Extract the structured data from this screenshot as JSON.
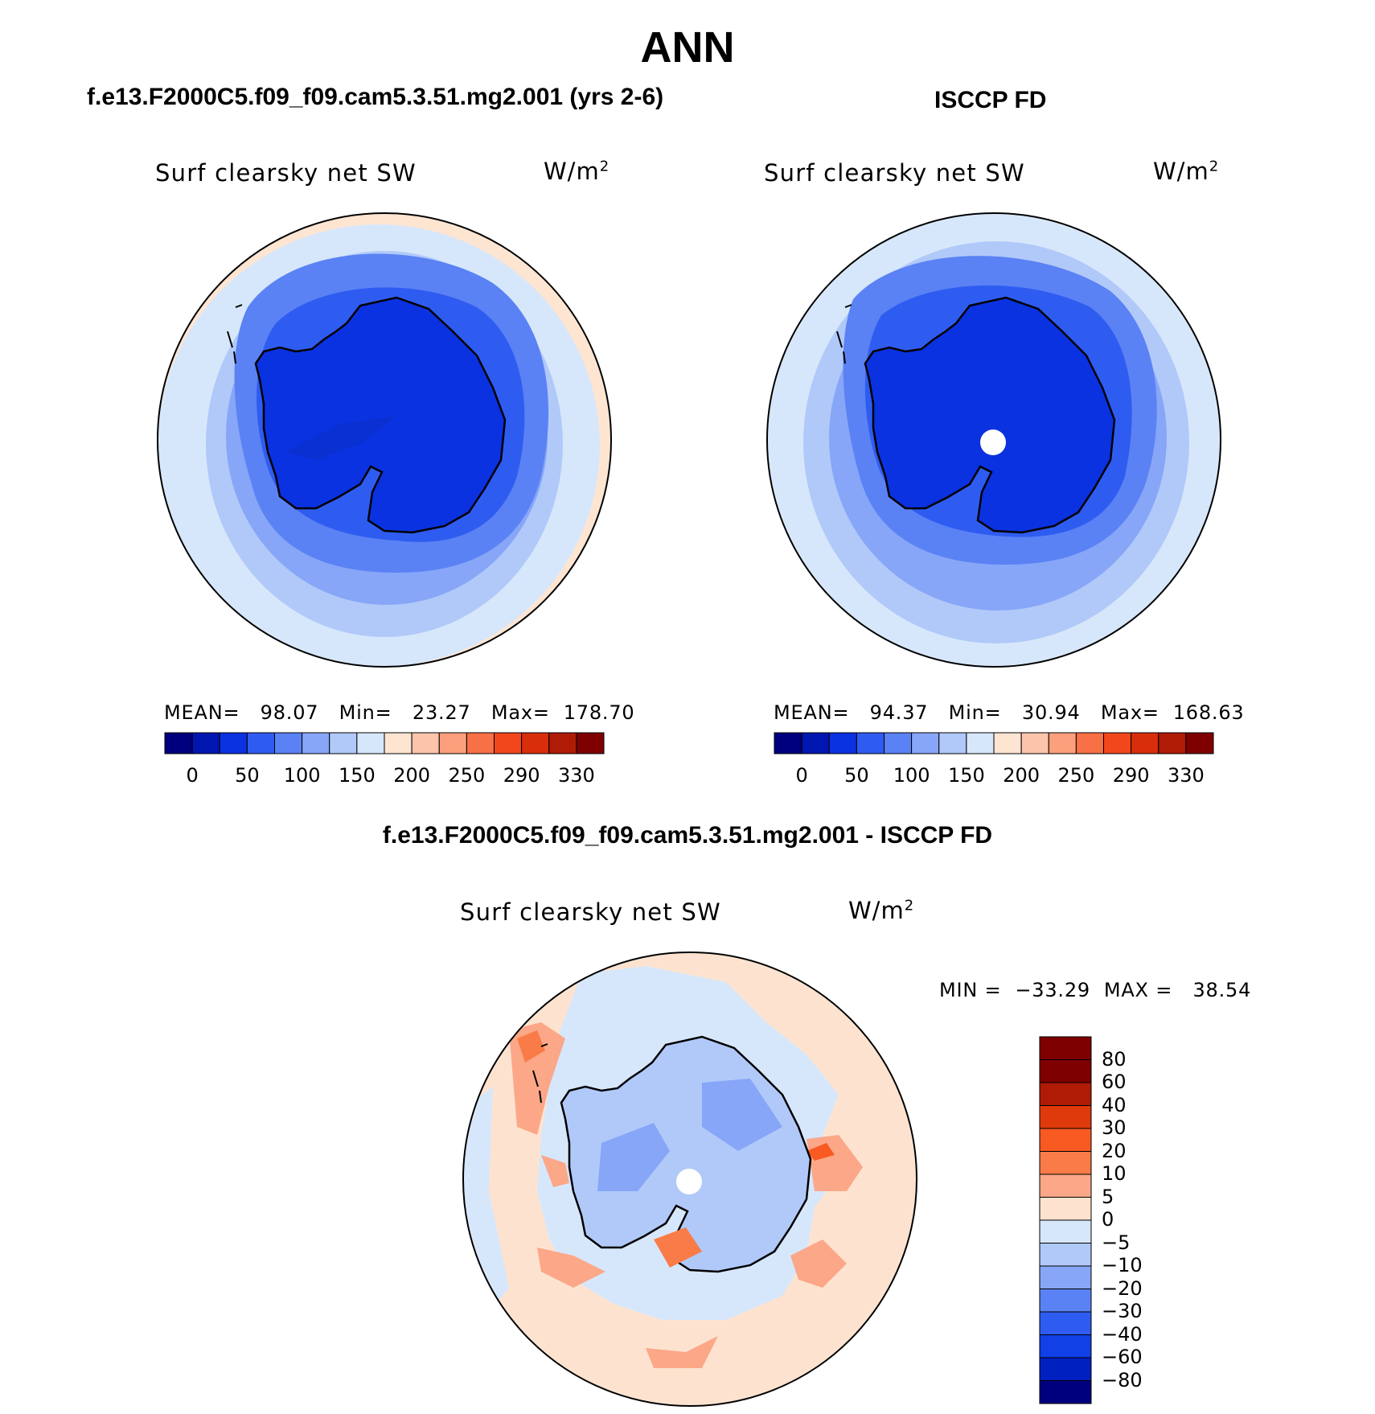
{
  "figure": {
    "title": "ANN"
  },
  "panels": [
    {
      "title": "f.e13.F2000C5.f09_f09.cam5.3.51.mg2.001 (yrs 2-6)",
      "variable": "Surf clearsky net SW",
      "units": "W/m",
      "units_exponent": "2",
      "stats": {
        "mean_label": "MEAN=",
        "mean": "98.07",
        "min_label": "Min=",
        "min": "23.27",
        "max_label": "Max=",
        "max": "178.70"
      },
      "colorbar": {
        "ticks": [
          "0",
          "50",
          "100",
          "150",
          "200",
          "250",
          "290",
          "330"
        ]
      },
      "has_pole_hole": false
    },
    {
      "title": "ISCCP FD",
      "variable": "Surf clearsky net SW",
      "units": "W/m",
      "units_exponent": "2",
      "stats": {
        "mean_label": "MEAN=",
        "mean": "94.37",
        "min_label": "Min=",
        "min": "30.94",
        "max_label": "Max=",
        "max": "168.63"
      },
      "colorbar": {
        "ticks": [
          "0",
          "50",
          "100",
          "150",
          "200",
          "250",
          "290",
          "330"
        ]
      },
      "has_pole_hole": true
    },
    {
      "title": "f.e13.F2000C5.f09_f09.cam5.3.51.mg2.001 - ISCCP FD",
      "variable": "Surf clearsky net SW",
      "units": "W/m",
      "units_exponent": "2",
      "stats": {
        "min_label": "MIN =",
        "min": "−33.29",
        "max_label": "MAX =",
        "max": "38.54"
      },
      "colorbar": {
        "ticks": [
          "80",
          "60",
          "40",
          "30",
          "20",
          "10",
          "5",
          "0",
          "−5",
          "−10",
          "−20",
          "−30",
          "−40",
          "−60",
          "−80"
        ]
      },
      "has_pole_hole": true
    }
  ],
  "colors": {
    "abs_scale": [
      "#00007f",
      "#0016b0",
      "#0a32e0",
      "#2f5cf0",
      "#5a82f4",
      "#87a6f7",
      "#b1c9f9",
      "#d7e7fb",
      "#fde5d2",
      "#fcc5ab",
      "#fb9f7c",
      "#f87045",
      "#f2471d",
      "#d82e0b",
      "#b01b05",
      "#7f0000"
    ],
    "diff_scale": [
      "#7f0000",
      "#b01b05",
      "#df3a0c",
      "#f85a22",
      "#f97c48",
      "#fba788",
      "#fde3cf",
      "#d7e7fb",
      "#b1c9f9",
      "#87a6f7",
      "#5a82f4",
      "#2f5cf0",
      "#1040e6",
      "#0020c0",
      "#00007f"
    ],
    "coastline": "#000000"
  }
}
